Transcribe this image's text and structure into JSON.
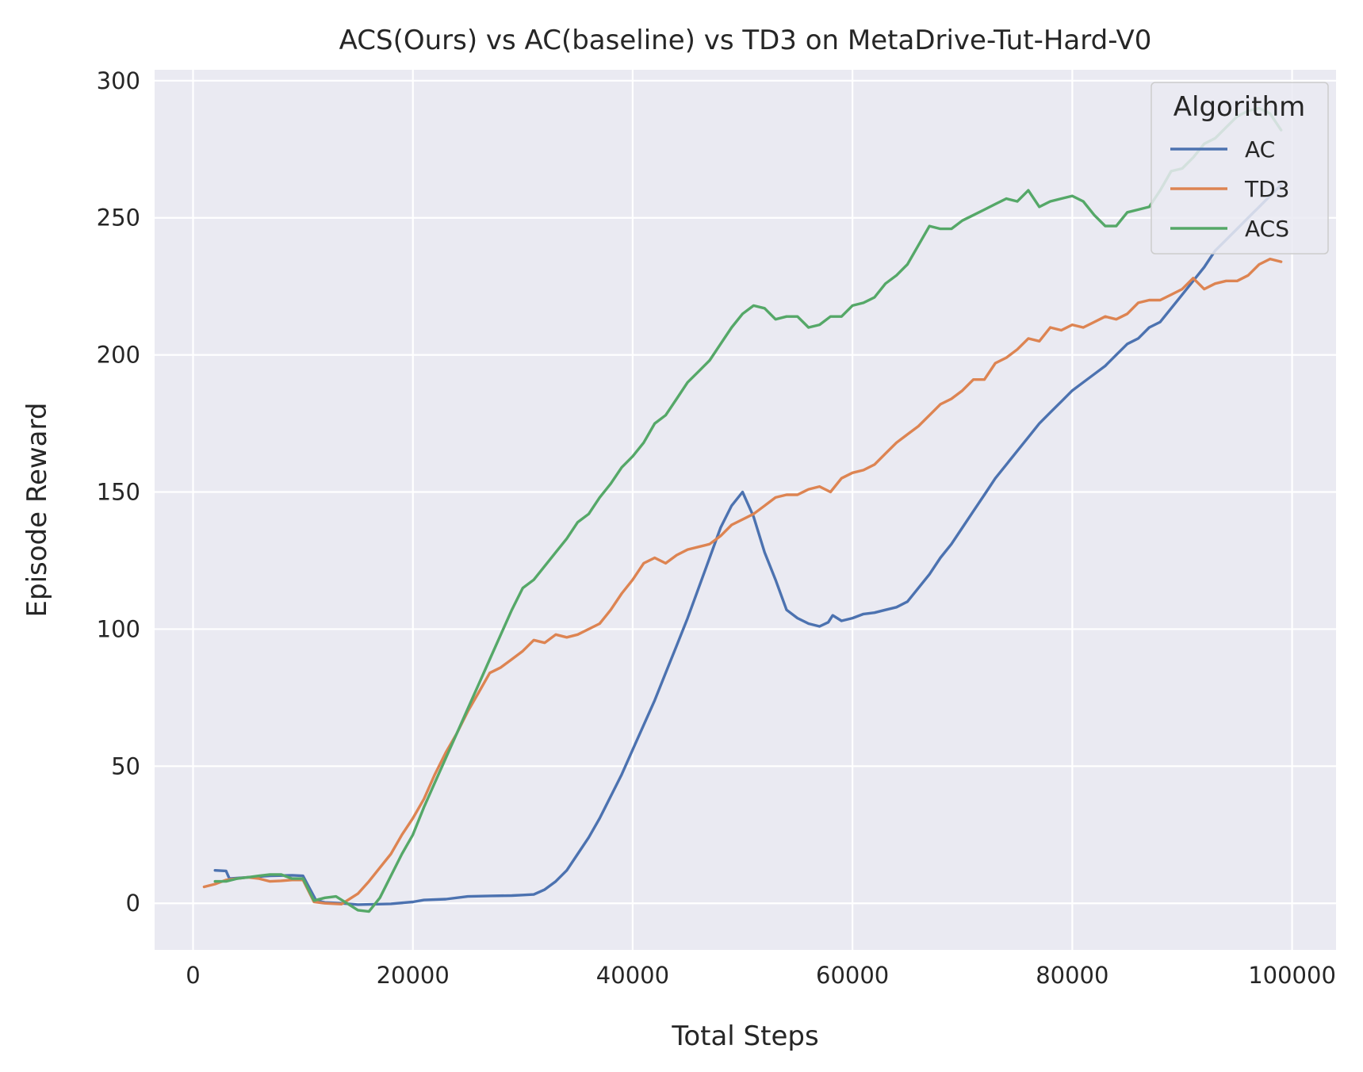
{
  "chart_data": {
    "type": "line",
    "title": "ACS(Ours) vs AC(baseline) vs TD3 on MetaDrive-Tut-Hard-V0",
    "xlabel": "Total Steps",
    "ylabel": "Episode Reward",
    "xlim": [
      -3500,
      104000
    ],
    "ylim": [
      -17,
      304
    ],
    "xticks": [
      0,
      20000,
      40000,
      60000,
      80000,
      100000
    ],
    "xtick_labels": [
      "0",
      "20000",
      "40000",
      "60000",
      "80000",
      "100000"
    ],
    "yticks": [
      0,
      50,
      100,
      150,
      200,
      250,
      300
    ],
    "ytick_labels": [
      "0",
      "50",
      "100",
      "150",
      "200",
      "250",
      "300"
    ],
    "grid": true,
    "legend": {
      "title": "Algorithm",
      "position": "top-right"
    },
    "series": [
      {
        "name": "AC",
        "color": "#4c72b0",
        "points": [
          [
            2000,
            12
          ],
          [
            3000,
            11.8
          ],
          [
            3300,
            9
          ],
          [
            5000,
            9.5
          ],
          [
            7000,
            10
          ],
          [
            9000,
            10.2
          ],
          [
            10000,
            10
          ],
          [
            11200,
            1
          ],
          [
            12000,
            0.3
          ],
          [
            13500,
            0
          ],
          [
            15000,
            -0.5
          ],
          [
            18000,
            -0.2
          ],
          [
            20000,
            0.5
          ],
          [
            21000,
            1.2
          ],
          [
            23000,
            1.5
          ],
          [
            25000,
            2.5
          ],
          [
            27000,
            2.7
          ],
          [
            29000,
            2.8
          ],
          [
            30000,
            3
          ],
          [
            31000,
            3.2
          ],
          [
            32000,
            5
          ],
          [
            33000,
            8
          ],
          [
            34000,
            12
          ],
          [
            35000,
            18
          ],
          [
            36000,
            24
          ],
          [
            37000,
            31
          ],
          [
            38000,
            39
          ],
          [
            39000,
            47
          ],
          [
            40000,
            56
          ],
          [
            41000,
            65
          ],
          [
            42000,
            74
          ],
          [
            43000,
            84
          ],
          [
            44000,
            94
          ],
          [
            45000,
            104
          ],
          [
            46000,
            115
          ],
          [
            47000,
            126
          ],
          [
            48000,
            137
          ],
          [
            49000,
            145
          ],
          [
            50000,
            150
          ],
          [
            51000,
            141
          ],
          [
            52000,
            128
          ],
          [
            53000,
            118
          ],
          [
            54000,
            107
          ],
          [
            55000,
            104
          ],
          [
            56000,
            102
          ],
          [
            57000,
            101
          ],
          [
            57800,
            102.5
          ],
          [
            58200,
            105
          ],
          [
            59000,
            103
          ],
          [
            60000,
            104
          ],
          [
            61000,
            105.5
          ],
          [
            62000,
            106
          ],
          [
            63000,
            107
          ],
          [
            64000,
            108
          ],
          [
            65000,
            110
          ],
          [
            66000,
            115
          ],
          [
            67000,
            120
          ],
          [
            68000,
            126
          ],
          [
            69000,
            131
          ],
          [
            70000,
            137
          ],
          [
            71000,
            143
          ],
          [
            72000,
            149
          ],
          [
            73000,
            155
          ],
          [
            74000,
            160
          ],
          [
            75000,
            165
          ],
          [
            76000,
            170
          ],
          [
            77000,
            175
          ],
          [
            78000,
            179
          ],
          [
            79000,
            183
          ],
          [
            80000,
            187
          ],
          [
            81000,
            190
          ],
          [
            82000,
            193
          ],
          [
            83000,
            196
          ],
          [
            84000,
            200
          ],
          [
            85000,
            204
          ],
          [
            86000,
            206
          ],
          [
            87000,
            210
          ],
          [
            88000,
            212
          ],
          [
            89000,
            217
          ],
          [
            90000,
            222
          ],
          [
            91000,
            227
          ],
          [
            92000,
            232
          ],
          [
            93000,
            238
          ],
          [
            94000,
            242
          ],
          [
            95000,
            246
          ],
          [
            96000,
            250
          ],
          [
            97000,
            254
          ],
          [
            98000,
            258
          ],
          [
            99000,
            262
          ]
        ]
      },
      {
        "name": "TD3",
        "color": "#dd8452",
        "points": [
          [
            1000,
            6
          ],
          [
            2000,
            7
          ],
          [
            3000,
            8.5
          ],
          [
            4000,
            9
          ],
          [
            5000,
            9.5
          ],
          [
            6000,
            9
          ],
          [
            7000,
            8
          ],
          [
            8000,
            8.2
          ],
          [
            9000,
            8.5
          ],
          [
            10000,
            8.5
          ],
          [
            11000,
            0.5
          ],
          [
            12000,
            0
          ],
          [
            13500,
            -0.3
          ],
          [
            15000,
            3.5
          ],
          [
            16000,
            8
          ],
          [
            17000,
            13
          ],
          [
            18000,
            18
          ],
          [
            19000,
            25
          ],
          [
            20000,
            31
          ],
          [
            21000,
            38
          ],
          [
            22000,
            47
          ],
          [
            23000,
            55
          ],
          [
            24000,
            62
          ],
          [
            25000,
            70
          ],
          [
            26000,
            77
          ],
          [
            27000,
            84
          ],
          [
            28000,
            86
          ],
          [
            29000,
            89
          ],
          [
            30000,
            92
          ],
          [
            31000,
            96
          ],
          [
            32000,
            95
          ],
          [
            33000,
            98
          ],
          [
            34000,
            97
          ],
          [
            35000,
            98
          ],
          [
            36000,
            100
          ],
          [
            37000,
            102
          ],
          [
            38000,
            107
          ],
          [
            39000,
            113
          ],
          [
            40000,
            118
          ],
          [
            41000,
            124
          ],
          [
            42000,
            126
          ],
          [
            43000,
            124
          ],
          [
            44000,
            127
          ],
          [
            45000,
            129
          ],
          [
            46000,
            130
          ],
          [
            47000,
            131
          ],
          [
            48000,
            134
          ],
          [
            49000,
            138
          ],
          [
            50000,
            140
          ],
          [
            51000,
            142
          ],
          [
            52000,
            145
          ],
          [
            53000,
            148
          ],
          [
            54000,
            149
          ],
          [
            55000,
            149
          ],
          [
            56000,
            151
          ],
          [
            57000,
            152
          ],
          [
            58000,
            150
          ],
          [
            59000,
            155
          ],
          [
            60000,
            157
          ],
          [
            61000,
            158
          ],
          [
            62000,
            160
          ],
          [
            63000,
            164
          ],
          [
            64000,
            168
          ],
          [
            65000,
            171
          ],
          [
            66000,
            174
          ],
          [
            67000,
            178
          ],
          [
            68000,
            182
          ],
          [
            69000,
            184
          ],
          [
            70000,
            187
          ],
          [
            71000,
            191
          ],
          [
            72000,
            191
          ],
          [
            73000,
            197
          ],
          [
            74000,
            199
          ],
          [
            75000,
            202
          ],
          [
            76000,
            206
          ],
          [
            77000,
            205
          ],
          [
            78000,
            210
          ],
          [
            79000,
            209
          ],
          [
            80000,
            211
          ],
          [
            81000,
            210
          ],
          [
            82000,
            212
          ],
          [
            83000,
            214
          ],
          [
            84000,
            213
          ],
          [
            85000,
            215
          ],
          [
            86000,
            219
          ],
          [
            87000,
            220
          ],
          [
            88000,
            220
          ],
          [
            89000,
            222
          ],
          [
            90000,
            224
          ],
          [
            91000,
            228
          ],
          [
            92000,
            224
          ],
          [
            93000,
            226
          ],
          [
            94000,
            227
          ],
          [
            95000,
            227
          ],
          [
            96000,
            229
          ],
          [
            97000,
            233
          ],
          [
            98000,
            235
          ],
          [
            99000,
            234
          ]
        ]
      },
      {
        "name": "ACS",
        "color": "#55a868",
        "points": [
          [
            2000,
            8
          ],
          [
            3000,
            8
          ],
          [
            4000,
            9
          ],
          [
            5000,
            9.5
          ],
          [
            6000,
            10
          ],
          [
            7000,
            10.5
          ],
          [
            8000,
            10.5
          ],
          [
            9000,
            9
          ],
          [
            10000,
            9
          ],
          [
            11000,
            1
          ],
          [
            12000,
            2
          ],
          [
            13000,
            2.5
          ],
          [
            14000,
            0
          ],
          [
            15000,
            -2.5
          ],
          [
            16000,
            -3
          ],
          [
            17000,
            2
          ],
          [
            18000,
            10
          ],
          [
            19000,
            18
          ],
          [
            20000,
            25
          ],
          [
            21000,
            35
          ],
          [
            22000,
            44
          ],
          [
            23000,
            53
          ],
          [
            24000,
            62
          ],
          [
            25000,
            71
          ],
          [
            26000,
            80
          ],
          [
            27000,
            89
          ],
          [
            28000,
            98
          ],
          [
            29000,
            107
          ],
          [
            30000,
            115
          ],
          [
            31000,
            118
          ],
          [
            32000,
            123
          ],
          [
            33000,
            128
          ],
          [
            34000,
            133
          ],
          [
            35000,
            139
          ],
          [
            36000,
            142
          ],
          [
            37000,
            148
          ],
          [
            38000,
            153
          ],
          [
            39000,
            159
          ],
          [
            40000,
            163
          ],
          [
            41000,
            168
          ],
          [
            42000,
            175
          ],
          [
            43000,
            178
          ],
          [
            44000,
            184
          ],
          [
            45000,
            190
          ],
          [
            46000,
            194
          ],
          [
            47000,
            198
          ],
          [
            48000,
            204
          ],
          [
            49000,
            210
          ],
          [
            50000,
            215
          ],
          [
            51000,
            218
          ],
          [
            52000,
            217
          ],
          [
            53000,
            213
          ],
          [
            54000,
            214
          ],
          [
            55000,
            214
          ],
          [
            56000,
            210
          ],
          [
            57000,
            211
          ],
          [
            58000,
            214
          ],
          [
            59000,
            214
          ],
          [
            60000,
            218
          ],
          [
            61000,
            219
          ],
          [
            62000,
            221
          ],
          [
            63000,
            226
          ],
          [
            64000,
            229
          ],
          [
            65000,
            233
          ],
          [
            66000,
            240
          ],
          [
            67000,
            247
          ],
          [
            68000,
            246
          ],
          [
            69000,
            246
          ],
          [
            70000,
            249
          ],
          [
            71000,
            251
          ],
          [
            72000,
            253
          ],
          [
            73000,
            255
          ],
          [
            74000,
            257
          ],
          [
            75000,
            256
          ],
          [
            76000,
            260
          ],
          [
            77000,
            254
          ],
          [
            78000,
            256
          ],
          [
            79000,
            257
          ],
          [
            80000,
            258
          ],
          [
            81000,
            256
          ],
          [
            82000,
            251
          ],
          [
            83000,
            247
          ],
          [
            84000,
            247
          ],
          [
            85000,
            252
          ],
          [
            86000,
            253
          ],
          [
            87000,
            254
          ],
          [
            88000,
            260
          ],
          [
            89000,
            267
          ],
          [
            90000,
            268
          ],
          [
            91000,
            272
          ],
          [
            92000,
            277
          ],
          [
            93000,
            279
          ],
          [
            94000,
            283
          ],
          [
            95000,
            287
          ],
          [
            96000,
            289
          ],
          [
            97000,
            290
          ],
          [
            98000,
            288
          ],
          [
            99000,
            282
          ]
        ]
      }
    ]
  }
}
